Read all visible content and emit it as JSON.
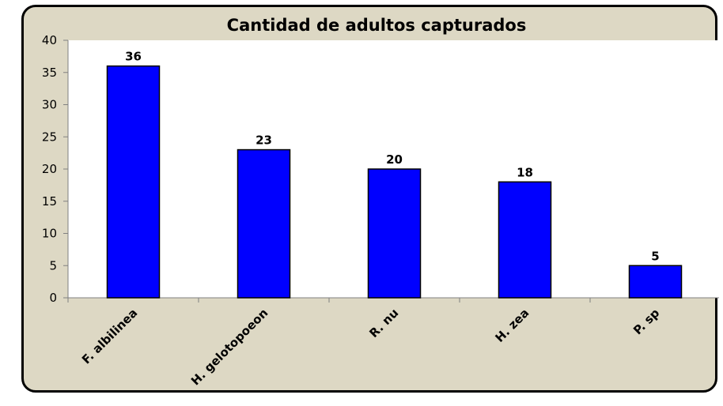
{
  "chart_data": {
    "type": "bar",
    "title": "Cantidad de adultos capturados",
    "categories": [
      "F. albilinea",
      "H. gelotopoeon",
      "R. nu",
      "H. zea",
      "P. sp"
    ],
    "values": [
      36,
      23,
      20,
      18,
      5
    ],
    "ylim": [
      0,
      40
    ],
    "yticks": [
      0,
      5,
      10,
      15,
      20,
      25,
      30,
      35,
      40
    ],
    "xlabel": "",
    "ylabel": "",
    "grid": false,
    "legend": "none",
    "colors": {
      "bar": "#0000ff",
      "plot_background": "#ffffff",
      "frame_background": "#ddd8c4"
    }
  }
}
